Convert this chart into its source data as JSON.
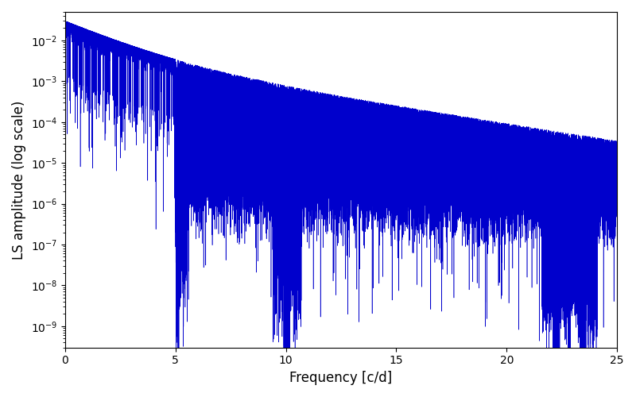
{
  "title": "",
  "xlabel": "Frequency [c/d]",
  "ylabel": "LS amplitude (log scale)",
  "xlim": [
    0,
    25
  ],
  "ylim_log": [
    3e-10,
    0.05
  ],
  "line_color": "#0000CC",
  "line_width": 0.4,
  "freq_max": 25.0,
  "n_points": 50000,
  "background_color": "#ffffff",
  "figsize": [
    8.0,
    5.0
  ],
  "dpi": 100,
  "yscale": "log",
  "xticks": [
    0,
    5,
    10,
    15,
    20,
    25
  ]
}
